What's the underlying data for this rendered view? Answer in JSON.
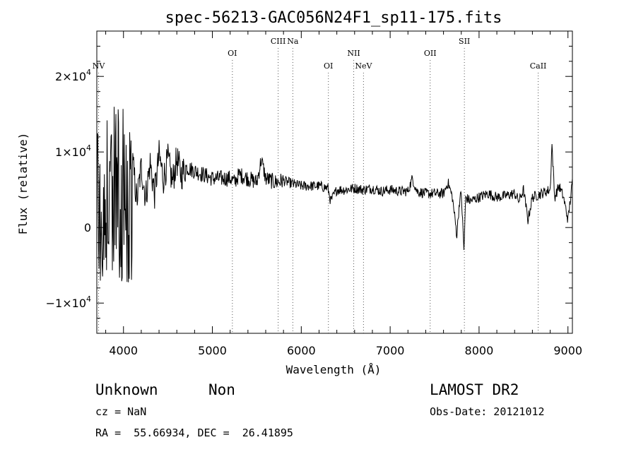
{
  "chart_data": {
    "type": "line",
    "title": "spec-56213-GAC056N24F1_sp11-175.fits",
    "xlabel": "Wavelength (Å)",
    "ylabel": "Flux (relative)",
    "xlim": [
      3700,
      9050
    ],
    "ylim": [
      -14000,
      26000
    ],
    "xticks": [
      {
        "value": 4000,
        "label": "4000"
      },
      {
        "value": 5000,
        "label": "5000"
      },
      {
        "value": 6000,
        "label": "6000"
      },
      {
        "value": 7000,
        "label": "7000"
      },
      {
        "value": 8000,
        "label": "8000"
      },
      {
        "value": 9000,
        "label": "9000"
      }
    ],
    "yticks": [
      {
        "value": -10000,
        "mant": "−1×10",
        "exp": "4"
      },
      {
        "value": 0,
        "mant": "0",
        "exp": ""
      },
      {
        "value": 10000,
        "mant": "1×10",
        "exp": "4"
      },
      {
        "value": 20000,
        "mant": "2×10",
        "exp": "4"
      }
    ],
    "lines": [
      {
        "name": "NV",
        "wavelength": 3720,
        "label_level": 1
      },
      {
        "name": "OI",
        "wavelength": 5225,
        "label_level": 0
      },
      {
        "name": "CIII",
        "wavelength": 5740,
        "label_level": -1
      },
      {
        "name": "Na",
        "wavelength": 5905,
        "label_level": -1
      },
      {
        "name": "OI",
        "wavelength": 6305,
        "label_level": 1
      },
      {
        "name": "NII",
        "wavelength": 6590,
        "label_level": 0
      },
      {
        "name": "NeV",
        "wavelength": 6700,
        "label_level": 1
      },
      {
        "name": "OII",
        "wavelength": 7450,
        "label_level": 0
      },
      {
        "name": "SII",
        "wavelength": 7835,
        "label_level": -1
      },
      {
        "name": "CaII",
        "wavelength": 8665,
        "label_level": 1
      }
    ],
    "spectrum": {
      "x": [
        3700,
        3740,
        3770,
        3800,
        3830,
        3860,
        3890,
        3920,
        3950,
        3980,
        4010,
        4040,
        4070,
        4100,
        4150,
        4200,
        4250,
        4300,
        4350,
        4400,
        4450,
        4500,
        4550,
        4600,
        4650,
        4700,
        4800,
        4900,
        5000,
        5100,
        5200,
        5250,
        5300,
        5400,
        5500,
        5550,
        5600,
        5700,
        5800,
        5900,
        6000,
        6100,
        6200,
        6300,
        6330,
        6400,
        6500,
        6600,
        6700,
        6800,
        6900,
        7000,
        7100,
        7200,
        7250,
        7300,
        7400,
        7500,
        7600,
        7650,
        7700,
        7750,
        7780,
        7800,
        7830,
        7850,
        7900,
        8000,
        8100,
        8200,
        8300,
        8400,
        8450,
        8500,
        8550,
        8600,
        8700,
        8800,
        8820,
        8850,
        8900,
        8950,
        9000,
        9050
      ],
      "y": [
        3000,
        12000,
        -6000,
        17000,
        -8000,
        14000,
        -4000,
        12000,
        -6000,
        11000,
        0,
        9000,
        -2000,
        9000,
        3500,
        8000,
        4000,
        8500,
        4500,
        9500,
        6500,
        9000,
        6000,
        9000,
        7000,
        8000,
        7500,
        7000,
        6500,
        6500,
        6500,
        6000,
        7000,
        6500,
        6000,
        9000,
        6500,
        6000,
        6200,
        5800,
        5500,
        5500,
        5500,
        5200,
        3500,
        5000,
        5000,
        5200,
        5000,
        5200,
        4800,
        5000,
        4800,
        4800,
        6500,
        4800,
        4500,
        4500,
        4500,
        6000,
        4000,
        -1000,
        3500,
        4500,
        -3000,
        4000,
        3500,
        4000,
        4500,
        4000,
        4200,
        4500,
        3500,
        5000,
        1000,
        4000,
        4500,
        5000,
        11000,
        4000,
        5500,
        4000,
        1000,
        6000
      ]
    }
  },
  "info": {
    "class": "Unknown",
    "subclass": "Non",
    "cz": "cz = NaN",
    "coords": "RA =  55.66934, DEC =  26.41895",
    "survey": "LAMOST DR2",
    "obsdate": "Obs-Date: 20121012"
  }
}
